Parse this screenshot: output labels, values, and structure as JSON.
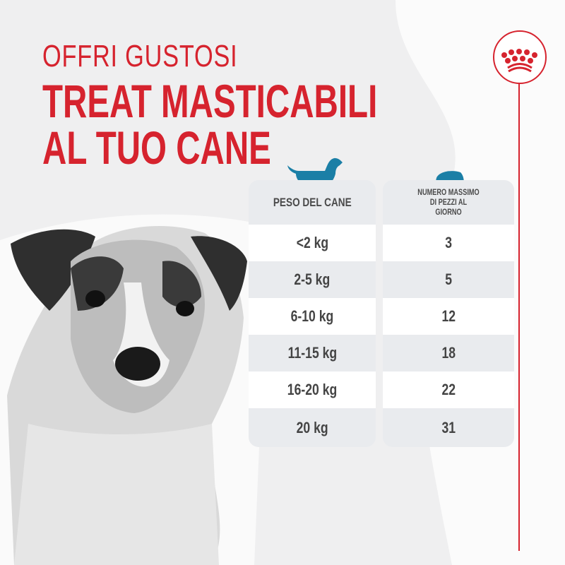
{
  "headline": {
    "line1": "OFFRI GUSTOSI",
    "line2": "TREAT MASTICABILI",
    "line3": "AL TUO CANE"
  },
  "brand": {
    "logo": "royal-crown-logo",
    "color": "#d6232e"
  },
  "icons": {
    "dog": "dog-silhouette-icon",
    "treat": "treat-icon",
    "accent": "#1b7fa6"
  },
  "table": {
    "headers": [
      "PESO DEL CANE",
      "NUMERO MASSIMO DI PEZZI AL GIORNO"
    ],
    "rows": [
      {
        "weight": "<2 kg",
        "pieces": "3"
      },
      {
        "weight": "2-5 kg",
        "pieces": "5"
      },
      {
        "weight": "6-10 kg",
        "pieces": "12"
      },
      {
        "weight": "11-15 kg",
        "pieces": "18"
      },
      {
        "weight": "16-20 kg",
        "pieces": "22"
      },
      {
        "weight": "20 kg",
        "pieces": "31"
      }
    ]
  }
}
